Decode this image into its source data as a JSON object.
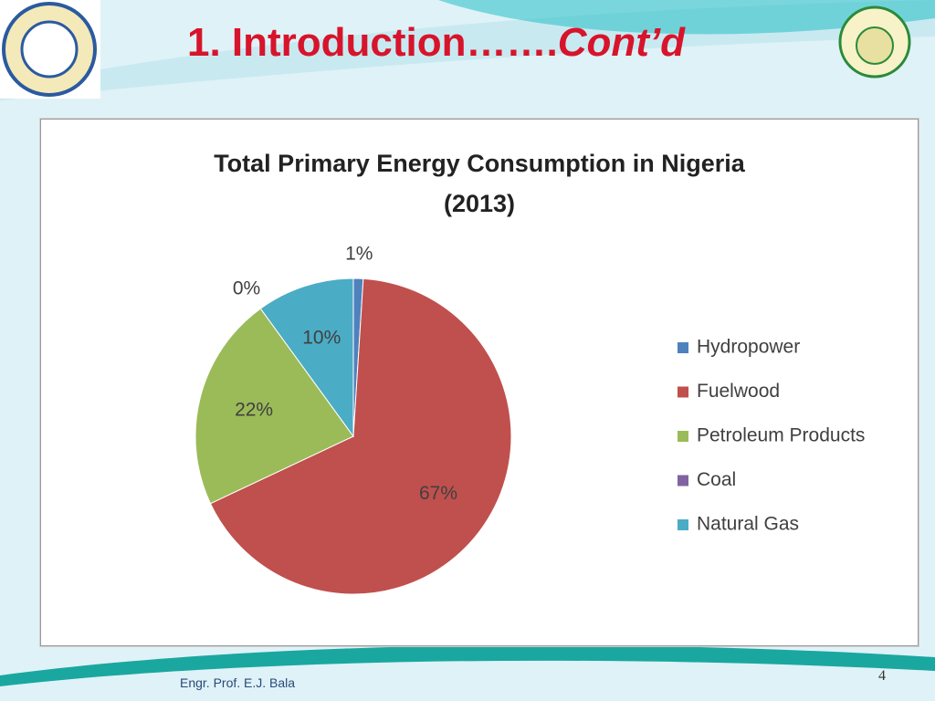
{
  "slide": {
    "title_main": "1. Introduction…….",
    "title_italic": "Cont’d",
    "footer": "Engr. Prof. E.J. Bala",
    "page_number": "4"
  },
  "chart_data": {
    "type": "pie",
    "title": "Total Primary Energy Consumption in Nigeria (2013)",
    "categories": [
      "Hydropower",
      "Fuelwood",
      "Petroleum Products",
      "Coal",
      "Natural Gas"
    ],
    "values": [
      1,
      67,
      22,
      0,
      10
    ],
    "value_labels": [
      "1%",
      "67%",
      "22%",
      "0%",
      "10%"
    ],
    "colors": [
      "#4f81bd",
      "#c0504d",
      "#9bbb59",
      "#8064a2",
      "#4bacc6"
    ],
    "legend": "right"
  }
}
